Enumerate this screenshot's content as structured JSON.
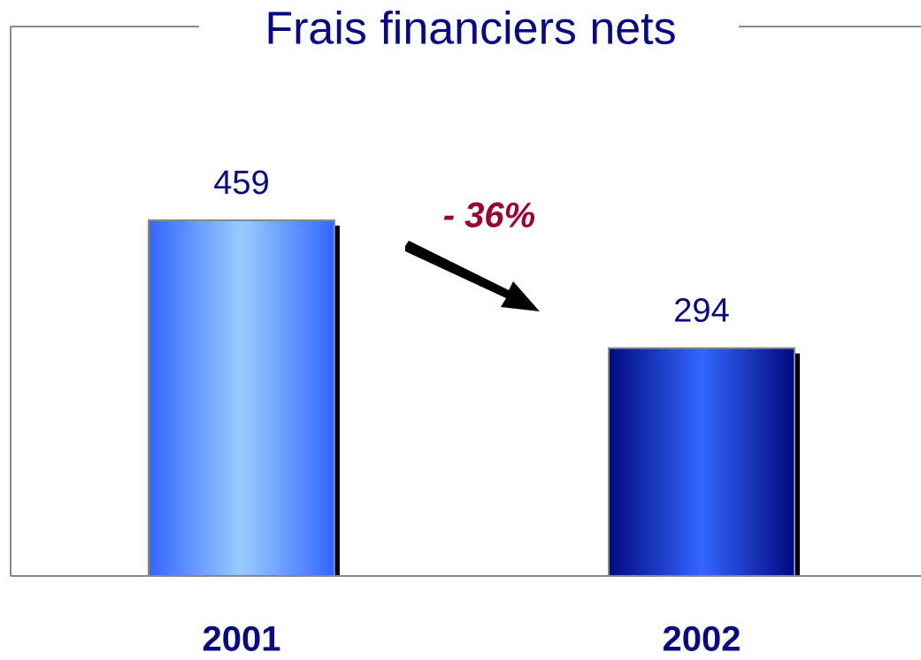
{
  "chart_data": {
    "type": "bar",
    "title": "Frais financiers nets",
    "categories": [
      "2001",
      "2002"
    ],
    "values": [
      459,
      294
    ],
    "gradients": [
      [
        "#3366ff",
        "#99ccff"
      ],
      [
        "#000a80",
        "#3366ff"
      ]
    ],
    "annotation": "- 36%",
    "annotation_color": "#990033",
    "text_color": "#0a0a80"
  }
}
